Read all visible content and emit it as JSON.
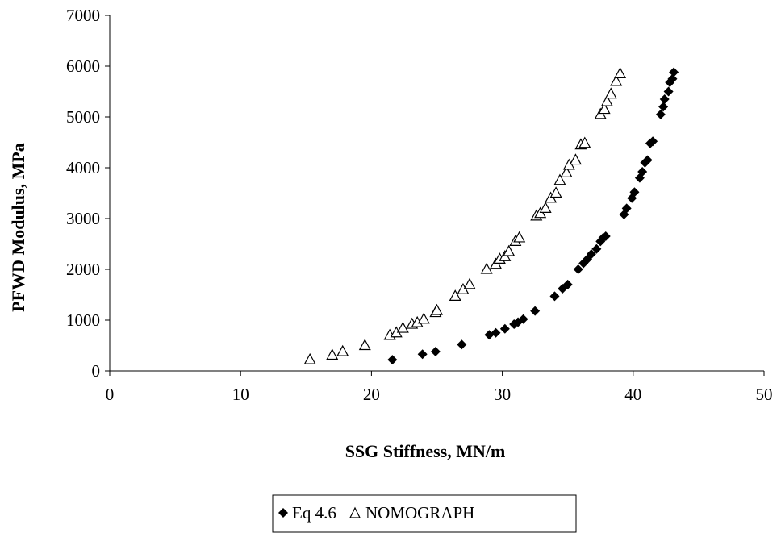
{
  "chart_data": {
    "type": "scatter",
    "title": "",
    "xlabel": "SSG Stiffness, MN/m",
    "ylabel": "PFWD Modulus, MPa",
    "xlim": [
      0,
      50
    ],
    "ylim": [
      0,
      7000
    ],
    "xticks": [
      0,
      10,
      20,
      30,
      40,
      50
    ],
    "yticks": [
      0,
      1000,
      2000,
      3000,
      4000,
      5000,
      6000,
      7000
    ],
    "x_tick_labels": [
      "0",
      "10",
      "20",
      "30",
      "40",
      "50"
    ],
    "y_tick_labels": [
      "0",
      "1000",
      "2000",
      "3000",
      "4000",
      "5000",
      "6000",
      "7000"
    ],
    "grid": false,
    "legend_position": "bottom-center",
    "series": [
      {
        "name": "Eq 4.6",
        "marker": "diamond",
        "color": "#000000",
        "x": [
          21.6,
          23.9,
          24.9,
          26.9,
          29.0,
          29.5,
          30.2,
          30.9,
          31.2,
          31.6,
          32.5,
          34.0,
          34.6,
          35.0,
          35.8,
          36.2,
          36.5,
          36.8,
          37.2,
          37.5,
          37.7,
          37.9,
          39.3,
          39.5,
          39.9,
          40.1,
          40.5,
          40.7,
          40.9,
          41.1,
          41.3,
          41.5,
          42.1,
          42.3,
          42.4,
          42.7,
          42.8,
          43.0,
          43.1
        ],
        "y": [
          220,
          330,
          380,
          520,
          710,
          750,
          830,
          920,
          960,
          1020,
          1180,
          1470,
          1620,
          1700,
          2000,
          2120,
          2200,
          2300,
          2400,
          2550,
          2620,
          2650,
          3080,
          3200,
          3400,
          3520,
          3800,
          3920,
          4100,
          4150,
          4480,
          4520,
          5050,
          5200,
          5350,
          5500,
          5680,
          5750,
          5880
        ]
      },
      {
        "name": "NOMOGRAPH",
        "marker": "triangle-open",
        "color": "#000000",
        "x": [
          15.3,
          17.0,
          17.8,
          19.5,
          21.4,
          21.9,
          22.4,
          23.1,
          23.5,
          24.0,
          24.9,
          25.0,
          26.4,
          27.0,
          27.5,
          28.8,
          29.5,
          29.8,
          30.2,
          30.5,
          31.0,
          31.3,
          32.6,
          32.9,
          33.3,
          33.7,
          34.1,
          34.4,
          34.9,
          35.1,
          35.6,
          36.0,
          36.3,
          37.5,
          37.8,
          38.0,
          38.3,
          38.7,
          39.0
        ],
        "y": [
          220,
          310,
          380,
          500,
          700,
          750,
          840,
          920,
          950,
          1020,
          1150,
          1190,
          1470,
          1600,
          1700,
          2000,
          2100,
          2200,
          2250,
          2350,
          2550,
          2620,
          3050,
          3100,
          3200,
          3400,
          3500,
          3750,
          3900,
          4050,
          4150,
          4450,
          4480,
          5050,
          5150,
          5300,
          5450,
          5700,
          5850
        ]
      }
    ]
  }
}
